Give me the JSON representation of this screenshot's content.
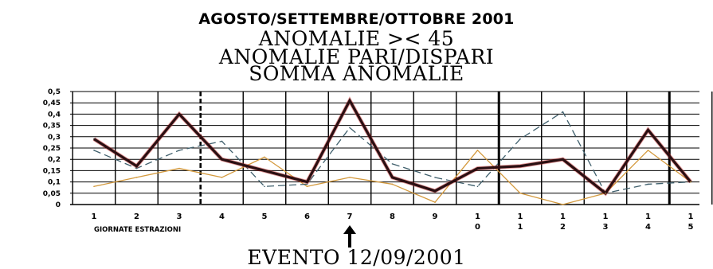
{
  "titles": {
    "line1": "AGOSTO/SETTEMBRE/OTTOBRE 2001",
    "line2": "ANOMALIE >< 45",
    "line3": "ANOMALIE PARI/DISPARI",
    "line4": "SOMMA ANOMALIE"
  },
  "event_label": "EVENTO 12/09/2001",
  "colors": {
    "somma": "#2a0f12",
    "somma_glow": "#c01818",
    "dispari": "#3f5f6c",
    "pari": "#d49a3e",
    "grid": "#000000"
  },
  "chart_data": {
    "type": "line",
    "title": "AGOSTO/SETTEMBRE/OTTOBRE 2001",
    "xlabel": "GIORNATE ESTRAZIONI",
    "ylabel": "",
    "ylim": [
      0,
      0.5
    ],
    "y_ticks": [
      "0",
      "0,05",
      "0,1",
      "0,15",
      "0,2",
      "0,25",
      "0,3",
      "0,35",
      "0,4",
      "0,45",
      "0,5"
    ],
    "categories": [
      "1",
      "2",
      "3",
      "4",
      "5",
      "6",
      "7",
      "8",
      "9",
      "10",
      "11",
      "12",
      "13",
      "14",
      "15"
    ],
    "category_lines": [
      [
        "1"
      ],
      [
        "2"
      ],
      [
        "3"
      ],
      [
        "4"
      ],
      [
        "5"
      ],
      [
        "6"
      ],
      [
        "7"
      ],
      [
        "8"
      ],
      [
        "9"
      ],
      [
        "1",
        "0"
      ],
      [
        "1",
        "1"
      ],
      [
        "1",
        "2"
      ],
      [
        "1",
        "3"
      ],
      [
        "1",
        "4"
      ],
      [
        "1",
        "5"
      ]
    ],
    "grid": true,
    "event_index": 7,
    "series": [
      {
        "key": "somma",
        "values": [
          0.29,
          0.17,
          0.4,
          0.2,
          0.15,
          0.1,
          0.46,
          0.12,
          0.06,
          0.16,
          0.17,
          0.2,
          0.05,
          0.33,
          0.1
        ]
      },
      {
        "key": "dispari",
        "values": [
          0.24,
          0.16,
          0.24,
          0.28,
          0.08,
          0.09,
          0.34,
          0.18,
          0.12,
          0.08,
          0.29,
          0.41,
          0.05,
          0.09,
          0.1
        ]
      },
      {
        "key": "pari",
        "values": [
          0.08,
          0.12,
          0.16,
          0.12,
          0.21,
          0.08,
          0.12,
          0.09,
          0.01,
          0.24,
          0.05,
          0.0,
          0.05,
          0.24,
          0.1
        ]
      }
    ]
  }
}
